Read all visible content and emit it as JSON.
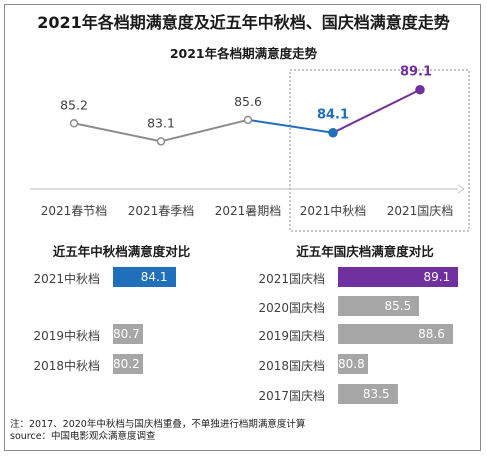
{
  "title": "2021年各档期满意度及近五年中秋档、国庆档满意度走势",
  "footnote": {
    "note": "注：2017、2020年中秋档与国庆档重叠，不单独进行档期满意度计算",
    "source": "source：中国电影观众满意度调查"
  },
  "chart_data": [
    {
      "type": "line",
      "title": "2021年各档期满意度走势",
      "categories": [
        "2021春节档",
        "2021春季档",
        "2021暑期档",
        "2021中秋档",
        "2021国庆档"
      ],
      "values": [
        85.2,
        83.1,
        85.6,
        84.1,
        89.1
      ],
      "ylim": [
        80,
        90
      ],
      "highlight": [
        "2021中秋档",
        "2021国庆档"
      ],
      "colors": {
        "base": "#8c8c8c",
        "mid_autumn": "#1f6fba",
        "national_day": "#7030a0"
      }
    },
    {
      "type": "bar",
      "title": "近五年中秋档满意度对比",
      "categories": [
        "2021中秋档",
        "",
        "2019中秋档",
        "2018中秋档"
      ],
      "values": [
        84.1,
        null,
        80.7,
        80.2
      ],
      "xlim": [
        78,
        90
      ],
      "colors": {
        "highlight": "#1f6fba",
        "other": "#a6a6a6"
      }
    },
    {
      "type": "bar",
      "title": "近五年国庆档满意度对比",
      "categories": [
        "2021国庆档",
        "2020国庆档",
        "2019国庆档",
        "2018国庆档",
        "2017国庆档"
      ],
      "values": [
        89.1,
        85.5,
        88.6,
        80.8,
        83.5
      ],
      "xlim": [
        78,
        90
      ],
      "colors": {
        "highlight": "#7030a0",
        "other": "#a6a6a6"
      }
    }
  ]
}
